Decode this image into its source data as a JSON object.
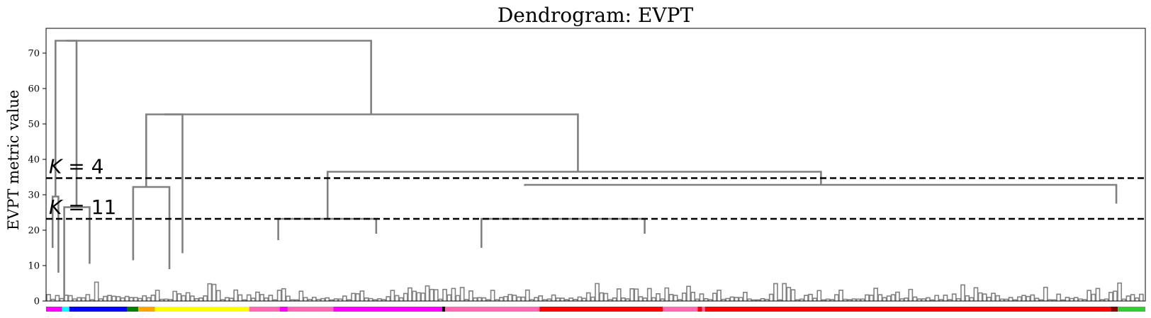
{
  "chart_data": {
    "type": "dendrogram",
    "title": "Dendrogram: EVPT",
    "xlabel": "",
    "ylabel": "EVPT metric value",
    "ylim": [
      0,
      77
    ],
    "yticks": [
      0,
      10,
      20,
      30,
      40,
      50,
      60,
      70
    ],
    "grid": false,
    "link_color": "#808080",
    "cut_lines": [
      {
        "value": 34.7,
        "label_var": "K",
        "label_rest": " = 4"
      },
      {
        "value": 23.2,
        "label_var": "K",
        "label_rest": " = 11"
      }
    ],
    "merges": [
      {
        "lx": 9,
        "ly": 15,
        "rx": 17,
        "ry": 8,
        "y": 29.5
      },
      {
        "lx": 25,
        "ly": 0,
        "rx": 60,
        "ry": 10.5,
        "y": 26.5
      },
      {
        "lx": 13,
        "ly": 29.5,
        "rx": 42,
        "ry": 26.5,
        "y": 73.5
      },
      {
        "lx": 120,
        "ly": 11.5,
        "rx": 170,
        "ry": 9,
        "y": 32.2
      },
      {
        "lx": 138,
        "ly": 32.2,
        "rx": 188,
        "ry": 13.5,
        "y": 52.7
      },
      {
        "lx": 320,
        "ly": 17.2,
        "rx": 455,
        "ry": 19,
        "y": 23.2
      },
      {
        "lx": 600,
        "ly": 15,
        "rx": 825,
        "ry": 19,
        "y": 23.2
      },
      {
        "lx": 660,
        "ly": 32.5,
        "rx": 1475,
        "ry": 27.5,
        "y": 32.8
      },
      {
        "lx": 388,
        "ly": 23.2,
        "rx": 1068,
        "ry": 32.8,
        "y": 36.5
      },
      {
        "lx": 163,
        "ly": 52.7,
        "rx": 733,
        "ry": 36.5,
        "y": 52.7
      },
      {
        "lx": 27.5,
        "ly": 73.5,
        "rx": 448,
        "ry": 52.7,
        "y": 73.5
      }
    ],
    "color_bar": [
      {
        "from": 0,
        "to": 22,
        "color": "#ff00ff"
      },
      {
        "from": 22,
        "to": 32,
        "color": "#00ffff"
      },
      {
        "from": 32,
        "to": 112,
        "color": "#0000ff"
      },
      {
        "from": 112,
        "to": 127,
        "color": "#008000"
      },
      {
        "from": 127,
        "to": 150,
        "color": "#ffa500"
      },
      {
        "from": 150,
        "to": 280,
        "color": "#ffff00"
      },
      {
        "from": 280,
        "to": 322,
        "color": "#ff69b4"
      },
      {
        "from": 322,
        "to": 333,
        "color": "#ff00ff"
      },
      {
        "from": 333,
        "to": 396,
        "color": "#ff69b4"
      },
      {
        "from": 396,
        "to": 546,
        "color": "#ff00ff"
      },
      {
        "from": 546,
        "to": 550,
        "color": "#000000"
      },
      {
        "from": 550,
        "to": 680,
        "color": "#ff69b4"
      },
      {
        "from": 680,
        "to": 850,
        "color": "#ff0000"
      },
      {
        "from": 850,
        "to": 898,
        "color": "#ff69b4"
      },
      {
        "from": 898,
        "to": 904,
        "color": "#ff0000"
      },
      {
        "from": 904,
        "to": 908,
        "color": "#ff69b4"
      },
      {
        "from": 908,
        "to": 1467,
        "color": "#ff0000"
      },
      {
        "from": 1467,
        "to": 1477,
        "color": "#8b0000"
      },
      {
        "from": 1477,
        "to": 1515,
        "color": "#32cd32"
      }
    ]
  }
}
